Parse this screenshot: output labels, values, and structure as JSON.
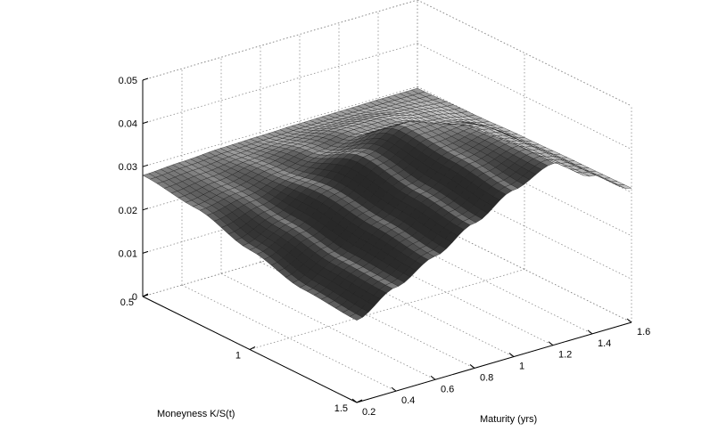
{
  "chart_data": {
    "type": "surface",
    "title": "",
    "xlabel": "Maturity (yrs)",
    "ylabel": "Moneyness K/S(t)",
    "zlabel": "",
    "x_ticks": [
      "0.2",
      "0.4",
      "0.6",
      "0.8",
      "1",
      "1.2",
      "1.4",
      "1.6"
    ],
    "y_ticks": [
      "0.5",
      "1",
      "1.5"
    ],
    "z_ticks": [
      "0",
      "0.01",
      "0.02",
      "0.03",
      "0.04",
      "0.05"
    ],
    "xlim": [
      0.2,
      1.6
    ],
    "ylim": [
      0.5,
      1.5
    ],
    "zlim": [
      0,
      0.05
    ],
    "grid": true,
    "colormap": "gray",
    "maturity": [
      0.2,
      0.4,
      0.6,
      0.8,
      1.0,
      1.2,
      1.4,
      1.6
    ],
    "moneyness": [
      0.5,
      0.75,
      1.0,
      1.25,
      1.5
    ],
    "z": [
      [
        0.028,
        0.0285,
        0.029,
        0.0292,
        0.0294,
        0.0295,
        0.0296,
        0.0296
      ],
      [
        0.0265,
        0.028,
        0.03,
        0.032,
        0.0335,
        0.0335,
        0.0315,
        0.03
      ],
      [
        0.023,
        0.0265,
        0.0315,
        0.037,
        0.041,
        0.041,
        0.035,
        0.0305
      ],
      [
        0.02,
        0.0245,
        0.03,
        0.035,
        0.04,
        0.042,
        0.036,
        0.0308
      ],
      [
        0.019,
        0.024,
        0.0285,
        0.0335,
        0.0385,
        0.042,
        0.0365,
        0.031
      ]
    ]
  }
}
